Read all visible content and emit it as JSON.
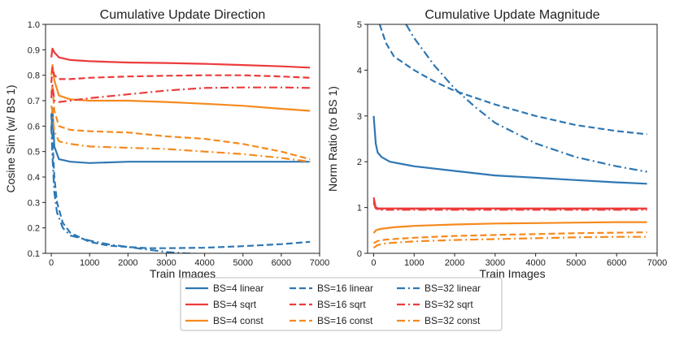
{
  "colors": {
    "linear": "#2E77B4",
    "sqrt": "#EC3B3B",
    "const": "#F58A1F"
  },
  "chart_data": [
    {
      "type": "line",
      "title": "Cumulative Update Direction",
      "xlabel": "Train Images",
      "ylabel": "Cosine Sim (w/ BS 1)",
      "xlim": [
        -150,
        7000
      ],
      "ylim": [
        0.1,
        1.0
      ],
      "xticks": [
        "0",
        "1000",
        "2000",
        "3000",
        "4000",
        "5000",
        "6000",
        "7000"
      ],
      "yticks": [
        "0.1",
        "0.2",
        "0.3",
        "0.4",
        "0.5",
        "0.6",
        "0.7",
        "0.8",
        "0.9",
        "1.0"
      ],
      "grid": false,
      "series": [
        {
          "name": "BS=4 linear",
          "color": "linear",
          "style": "solid",
          "x": [
            0,
            30,
            80,
            200,
            500,
            1000,
            2000,
            3000,
            4000,
            5000,
            6000,
            6750
          ],
          "y": [
            0.58,
            0.67,
            0.52,
            0.47,
            0.46,
            0.455,
            0.46,
            0.46,
            0.46,
            0.46,
            0.46,
            0.46
          ]
        },
        {
          "name": "BS=4 sqrt",
          "color": "sqrt",
          "style": "solid",
          "x": [
            0,
            30,
            80,
            200,
            500,
            1000,
            2000,
            3000,
            4000,
            5000,
            6000,
            6750
          ],
          "y": [
            0.87,
            0.905,
            0.89,
            0.87,
            0.86,
            0.855,
            0.85,
            0.848,
            0.845,
            0.84,
            0.835,
            0.83
          ]
        },
        {
          "name": "BS=4 const",
          "color": "const",
          "style": "solid",
          "x": [
            0,
            30,
            80,
            200,
            500,
            1000,
            2000,
            3000,
            4000,
            5000,
            6000,
            6750
          ],
          "y": [
            0.8,
            0.84,
            0.78,
            0.72,
            0.705,
            0.7,
            0.7,
            0.695,
            0.688,
            0.68,
            0.668,
            0.66
          ]
        },
        {
          "name": "BS=16 linear",
          "color": "linear",
          "style": "dashed",
          "x": [
            0,
            30,
            80,
            150,
            300,
            500,
            1000,
            1500,
            2000,
            2500,
            3000,
            4000,
            5000,
            6000,
            6750
          ],
          "y": [
            0.65,
            0.55,
            0.4,
            0.3,
            0.22,
            0.18,
            0.145,
            0.13,
            0.125,
            0.12,
            0.12,
            0.122,
            0.128,
            0.136,
            0.145
          ]
        },
        {
          "name": "BS=16 sqrt",
          "color": "sqrt",
          "style": "dashed",
          "x": [
            0,
            30,
            80,
            200,
            500,
            1000,
            2000,
            3000,
            4000,
            5000,
            6000,
            6750
          ],
          "y": [
            0.77,
            0.83,
            0.8,
            0.785,
            0.785,
            0.79,
            0.795,
            0.798,
            0.8,
            0.8,
            0.795,
            0.79
          ]
        },
        {
          "name": "BS=16 const",
          "color": "const",
          "style": "dashed",
          "x": [
            0,
            30,
            80,
            200,
            500,
            1000,
            2000,
            3000,
            4000,
            5000,
            6000,
            6750
          ],
          "y": [
            0.73,
            0.76,
            0.66,
            0.6,
            0.585,
            0.58,
            0.575,
            0.56,
            0.55,
            0.53,
            0.5,
            0.47
          ]
        },
        {
          "name": "BS=32 linear",
          "color": "linear",
          "style": "dashdot",
          "x": [
            0,
            30,
            80,
            150,
            300,
            500,
            1000,
            1500,
            2000,
            2500,
            3000,
            3500,
            4000
          ],
          "y": [
            0.6,
            0.48,
            0.34,
            0.26,
            0.2,
            0.17,
            0.15,
            0.135,
            0.125,
            0.115,
            0.105,
            0.1,
            0.097
          ]
        },
        {
          "name": "BS=32 sqrt",
          "color": "sqrt",
          "style": "dashdot",
          "x": [
            0,
            30,
            80,
            200,
            500,
            1000,
            2000,
            3000,
            4000,
            5000,
            6000,
            6750
          ],
          "y": [
            0.71,
            0.76,
            0.7,
            0.695,
            0.7,
            0.71,
            0.725,
            0.74,
            0.75,
            0.752,
            0.752,
            0.75
          ]
        },
        {
          "name": "BS=32 const",
          "color": "const",
          "style": "dashdot",
          "x": [
            0,
            30,
            80,
            200,
            500,
            1000,
            2000,
            3000,
            4000,
            5000,
            6000,
            6750
          ],
          "y": [
            0.68,
            0.66,
            0.58,
            0.54,
            0.53,
            0.52,
            0.515,
            0.51,
            0.5,
            0.49,
            0.475,
            0.46
          ]
        }
      ]
    },
    {
      "type": "line",
      "title": "Cumulative Update Magnitude",
      "xlabel": "Train Images",
      "ylabel": "Norm Ratio (to BS 1)",
      "xlim": [
        -150,
        7000
      ],
      "ylim": [
        0,
        5
      ],
      "xticks": [
        "0",
        "1000",
        "2000",
        "3000",
        "4000",
        "5000",
        "6000",
        "7000"
      ],
      "yticks": [
        "0",
        "1",
        "2",
        "3",
        "4",
        "5"
      ],
      "grid": false,
      "series": [
        {
          "name": "BS=4 linear",
          "color": "linear",
          "style": "solid",
          "x": [
            0,
            50,
            100,
            200,
            400,
            700,
            1000,
            2000,
            3000,
            4000,
            5000,
            6000,
            6750
          ],
          "y": [
            3.0,
            2.4,
            2.2,
            2.1,
            2.0,
            1.95,
            1.9,
            1.8,
            1.7,
            1.65,
            1.6,
            1.55,
            1.52
          ]
        },
        {
          "name": "BS=4 sqrt",
          "color": "sqrt",
          "style": "solid",
          "x": [
            0,
            50,
            120,
            300,
            1000,
            3000,
            5000,
            6750
          ],
          "y": [
            1.22,
            1.0,
            0.98,
            0.98,
            0.98,
            0.98,
            0.98,
            0.98
          ]
        },
        {
          "name": "BS=4 const",
          "color": "const",
          "style": "solid",
          "x": [
            0,
            50,
            150,
            500,
            1000,
            2000,
            3000,
            4000,
            5000,
            6000,
            6750
          ],
          "y": [
            0.44,
            0.5,
            0.53,
            0.57,
            0.6,
            0.63,
            0.65,
            0.66,
            0.67,
            0.68,
            0.68
          ]
        },
        {
          "name": "BS=16 linear",
          "color": "linear",
          "style": "dashed",
          "x": [
            150,
            300,
            500,
            1000,
            1500,
            2000,
            3000,
            4000,
            5000,
            6000,
            6750
          ],
          "y": [
            5.0,
            4.6,
            4.3,
            4.0,
            3.75,
            3.55,
            3.25,
            3.0,
            2.8,
            2.67,
            2.6
          ]
        },
        {
          "name": "BS=16 sqrt",
          "color": "sqrt",
          "style": "dashed",
          "x": [
            0,
            50,
            120,
            300,
            1000,
            3000,
            5000,
            6750
          ],
          "y": [
            1.15,
            0.99,
            0.97,
            0.97,
            0.97,
            0.97,
            0.97,
            0.97
          ]
        },
        {
          "name": "BS=16 const",
          "color": "const",
          "style": "dashed",
          "x": [
            0,
            100,
            300,
            1000,
            2000,
            3000,
            4000,
            5000,
            6000,
            6750
          ],
          "y": [
            0.22,
            0.27,
            0.3,
            0.34,
            0.38,
            0.4,
            0.42,
            0.44,
            0.45,
            0.46
          ]
        },
        {
          "name": "BS=32 linear",
          "color": "linear",
          "style": "dashdot",
          "x": [
            800,
            1000,
            1500,
            2000,
            2500,
            3000,
            4000,
            5000,
            6000,
            6750
          ],
          "y": [
            5.0,
            4.7,
            4.1,
            3.6,
            3.2,
            2.85,
            2.4,
            2.1,
            1.9,
            1.78
          ]
        },
        {
          "name": "BS=32 sqrt",
          "color": "sqrt",
          "style": "dashdot",
          "x": [
            0,
            50,
            120,
            300,
            1000,
            3000,
            5000,
            6750
          ],
          "y": [
            1.1,
            0.98,
            0.95,
            0.95,
            0.95,
            0.95,
            0.95,
            0.95
          ]
        },
        {
          "name": "BS=32 const",
          "color": "const",
          "style": "dashdot",
          "x": [
            0,
            100,
            300,
            1000,
            2000,
            3000,
            4000,
            5000,
            6000,
            6750
          ],
          "y": [
            0.12,
            0.18,
            0.22,
            0.26,
            0.29,
            0.31,
            0.33,
            0.35,
            0.36,
            0.36
          ]
        }
      ]
    }
  ],
  "legend": {
    "placement": "bottom-center",
    "columns": [
      [
        "BS=4 linear",
        "BS=4 sqrt",
        "BS=4 const"
      ],
      [
        "BS=16 linear",
        "BS=16 sqrt",
        "BS=16 const"
      ],
      [
        "BS=32 linear",
        "BS=32 sqrt",
        "BS=32 const"
      ]
    ]
  }
}
